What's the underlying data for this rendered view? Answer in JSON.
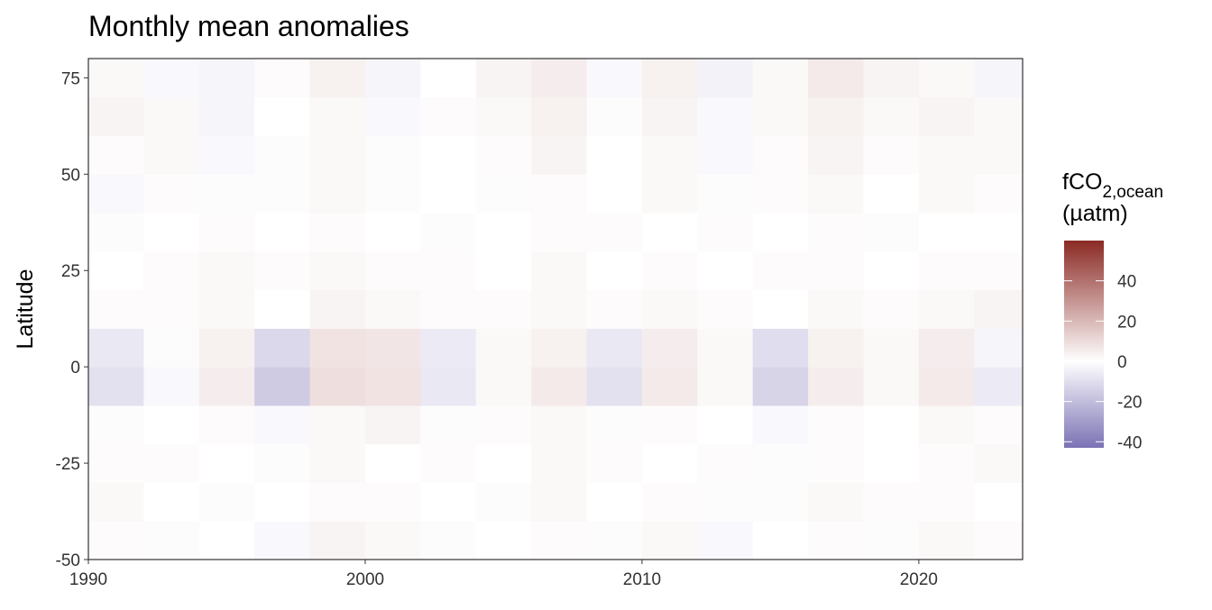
{
  "chart_data": {
    "type": "heatmap",
    "title": "Monthly mean anomalies",
    "y_label": "Latitude",
    "legend_title": {
      "main": "fCO",
      "sub": "2,ocean",
      "unit": "(µatm)"
    },
    "x": [
      1991,
      1993,
      1995,
      1997,
      1999,
      2001,
      2003,
      2005,
      2007,
      2009,
      2011,
      2013,
      2015,
      2017,
      2019,
      2021,
      2023
    ],
    "y": [
      -45,
      -35,
      -25,
      -15,
      -5,
      5,
      15,
      25,
      35,
      45,
      55,
      65,
      75
    ],
    "values": [
      [
        1,
        -1,
        0,
        -2,
        3,
        2,
        -1,
        0,
        1,
        -1,
        2,
        -2,
        0,
        1,
        -1,
        2,
        1
      ],
      [
        2,
        0,
        -1,
        0,
        1,
        1,
        0,
        -1,
        2,
        0,
        1,
        -1,
        -1,
        2,
        1,
        1,
        0
      ],
      [
        1,
        1,
        0,
        -1,
        2,
        0,
        1,
        0,
        2,
        1,
        0,
        1,
        -1,
        1,
        0,
        1,
        2
      ],
      [
        -1,
        0,
        1,
        -2,
        2,
        3,
        -1,
        1,
        2,
        -1,
        1,
        0,
        -2,
        1,
        0,
        2,
        1
      ],
      [
        -9,
        -2,
        5,
        -16,
        9,
        8,
        -7,
        2,
        6,
        -9,
        6,
        2,
        -13,
        5,
        2,
        6,
        -6
      ],
      [
        -7,
        -1,
        4,
        -12,
        8,
        7,
        -6,
        2,
        4,
        -7,
        5,
        2,
        -10,
        4,
        2,
        5,
        -3
      ],
      [
        1,
        1,
        2,
        0,
        3,
        2,
        1,
        1,
        2,
        1,
        2,
        1,
        0,
        2,
        1,
        2,
        3
      ],
      [
        0,
        1,
        2,
        1,
        2,
        1,
        1,
        0,
        2,
        0,
        1,
        0,
        1,
        1,
        0,
        1,
        1
      ],
      [
        -1,
        0,
        1,
        0,
        1,
        0,
        -1,
        0,
        1,
        1,
        0,
        1,
        0,
        1,
        -1,
        0,
        0
      ],
      [
        -2,
        1,
        -1,
        -1,
        2,
        -1,
        0,
        -1,
        1,
        0,
        2,
        -1,
        1,
        2,
        0,
        2,
        1
      ],
      [
        1,
        2,
        -2,
        -1,
        2,
        -1,
        0,
        1,
        3,
        0,
        2,
        -2,
        1,
        3,
        1,
        2,
        2
      ],
      [
        3,
        2,
        -3,
        0,
        2,
        -2,
        1,
        2,
        4,
        -1,
        3,
        -2,
        2,
        4,
        2,
        3,
        2
      ],
      [
        2,
        -2,
        -3,
        1,
        4,
        -3,
        0,
        3,
        5,
        -2,
        4,
        -4,
        2,
        6,
        3,
        2,
        -3
      ]
    ],
    "xlim": [
      1990,
      2023.75
    ],
    "xticks": [
      1990,
      2000,
      2010,
      2020
    ],
    "ylim": [
      -50,
      80
    ],
    "yticks": [
      -50,
      -25,
      0,
      25,
      50,
      75
    ],
    "clim": [
      -43,
      60
    ],
    "cmid": 0,
    "colorbar_ticks": [
      -40,
      -20,
      0,
      20,
      40
    ],
    "colors": [
      "#7a72b4",
      "#ffffff",
      "#8b2a24"
    ]
  }
}
